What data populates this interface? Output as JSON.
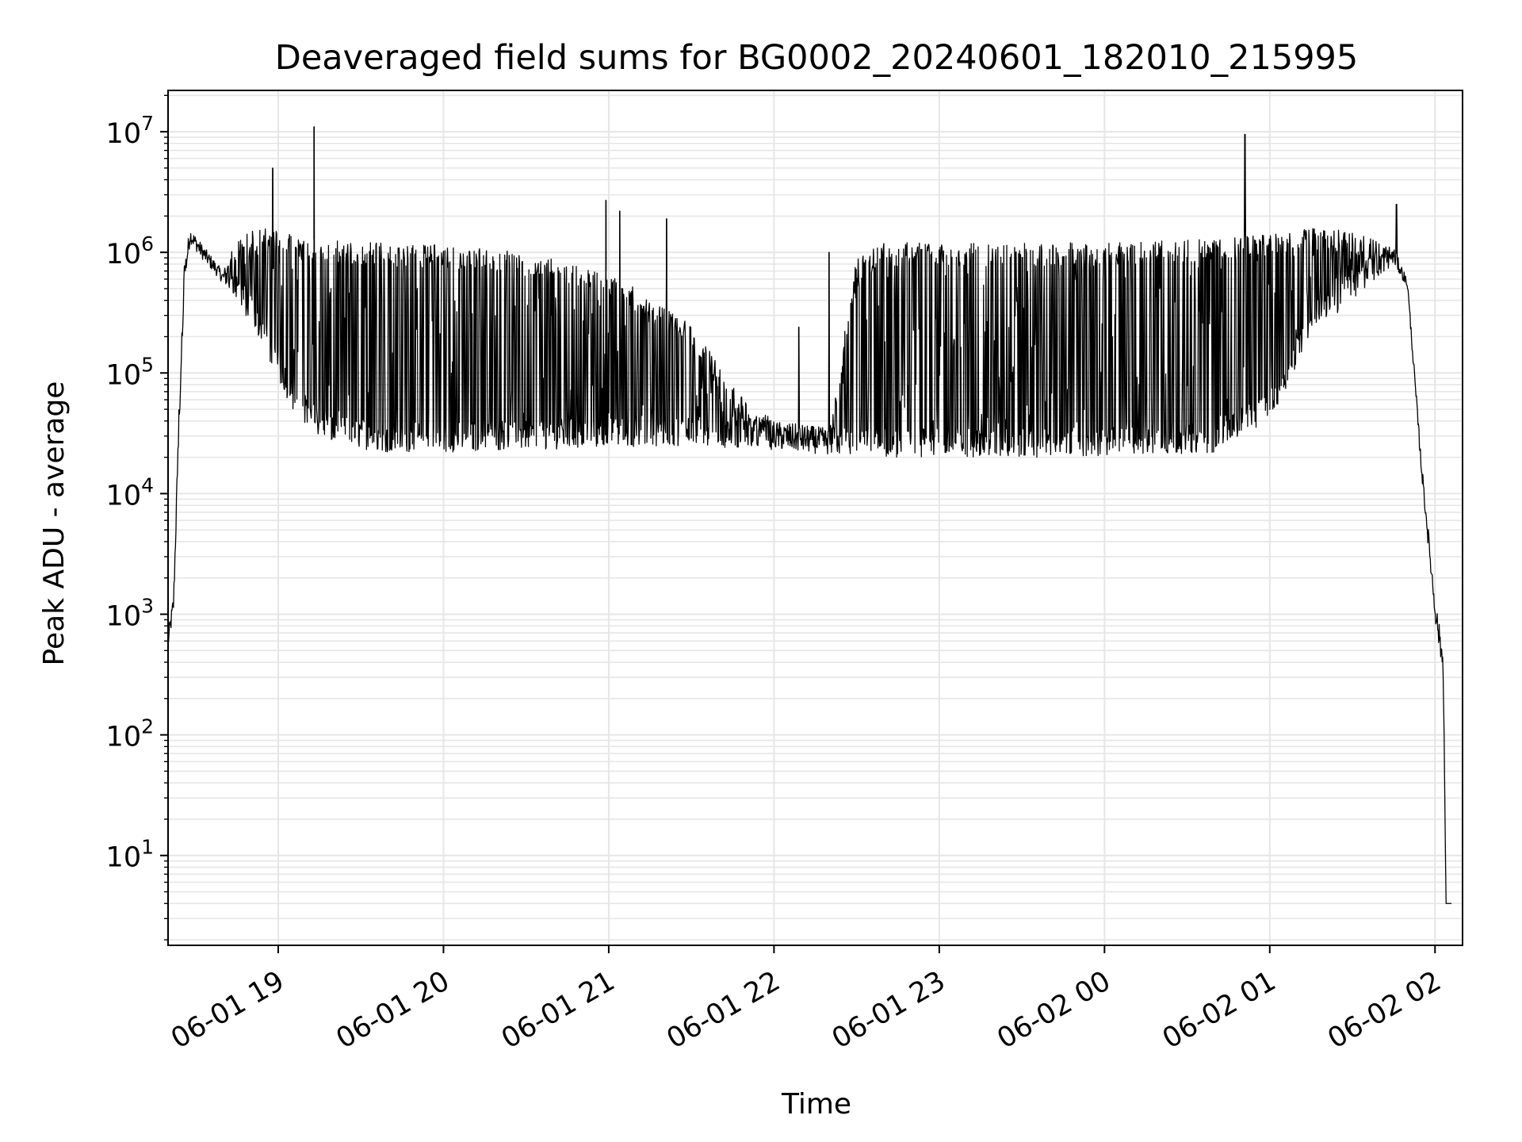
{
  "chart_data": {
    "type": "line",
    "title": "Deaveraged field sums for BG0002_20240601_182010_215995",
    "xlabel": "Time",
    "ylabel": "Peak ADU - average",
    "y_scale": "log",
    "ylim": [
      1.8,
      22000000
    ],
    "xlim": [
      "2024-06-01 18:20",
      "2024-06-02 02:10"
    ],
    "grid": true,
    "x_tick_labels": [
      "06-01 19",
      "06-01 20",
      "06-01 21",
      "06-01 22",
      "06-01 23",
      "06-02 00",
      "06-02 01",
      "06-02 02"
    ],
    "x_ticks": [
      "2024-06-01 19:00",
      "2024-06-01 20:00",
      "2024-06-01 21:00",
      "2024-06-01 22:00",
      "2024-06-01 23:00",
      "2024-06-02 00:00",
      "2024-06-02 01:00",
      "2024-06-02 02:00"
    ],
    "y_ticks": [
      10,
      100,
      1000,
      10000,
      100000,
      1000000,
      10000000
    ],
    "y_tick_labels": [
      {
        "base": "10",
        "exp": "1"
      },
      {
        "base": "10",
        "exp": "2"
      },
      {
        "base": "10",
        "exp": "3"
      },
      {
        "base": "10",
        "exp": "4"
      },
      {
        "base": "10",
        "exp": "5"
      },
      {
        "base": "10",
        "exp": "6"
      },
      {
        "base": "10",
        "exp": "7"
      }
    ],
    "series": [
      {
        "color": "#000000",
        "envelope": [
          {
            "t": "2024-06-01 18:20",
            "lower": 500,
            "upper": 700
          },
          {
            "t": "2024-06-01 18:22",
            "lower": 1000,
            "upper": 1500
          },
          {
            "t": "2024-06-01 18:24",
            "lower": 30000,
            "upper": 60000
          },
          {
            "t": "2024-06-01 18:26",
            "lower": 500000,
            "upper": 900000
          },
          {
            "t": "2024-06-01 18:28",
            "lower": 1200000,
            "upper": 1600000
          },
          {
            "t": "2024-06-01 18:32",
            "lower": 900000,
            "upper": 1200000
          },
          {
            "t": "2024-06-01 18:40",
            "lower": 550000,
            "upper": 700000
          },
          {
            "t": "2024-06-01 18:45",
            "lower": 400000,
            "upper": 1400000
          },
          {
            "t": "2024-06-01 18:50",
            "lower": 250000,
            "upper": 1500000
          },
          {
            "t": "2024-06-01 18:55",
            "lower": 150000,
            "upper": 1600000
          },
          {
            "t": "2024-06-01 19:00",
            "lower": 90000,
            "upper": 1500000
          },
          {
            "t": "2024-06-01 19:05",
            "lower": 50000,
            "upper": 1400000
          },
          {
            "t": "2024-06-01 19:10",
            "lower": 35000,
            "upper": 1300000
          },
          {
            "t": "2024-06-01 19:20",
            "lower": 25000,
            "upper": 1250000
          },
          {
            "t": "2024-06-01 19:40",
            "lower": 22000,
            "upper": 1200000
          },
          {
            "t": "2024-06-01 20:00",
            "lower": 22000,
            "upper": 1150000
          },
          {
            "t": "2024-06-01 20:30",
            "lower": 23000,
            "upper": 1000000
          },
          {
            "t": "2024-06-01 21:00",
            "lower": 24000,
            "upper": 700000
          },
          {
            "t": "2024-06-01 21:30",
            "lower": 25000,
            "upper": 250000
          },
          {
            "t": "2024-06-01 21:45",
            "lower": 24000,
            "upper": 80000
          },
          {
            "t": "2024-06-01 22:00",
            "lower": 23000,
            "upper": 40000
          },
          {
            "t": "2024-06-01 22:20",
            "lower": 21000,
            "upper": 35000
          },
          {
            "t": "2024-06-01 22:30",
            "lower": 20000,
            "upper": 900000
          },
          {
            "t": "2024-06-01 22:40",
            "lower": 20000,
            "upper": 1200000
          },
          {
            "t": "2024-06-01 23:00",
            "lower": 20000,
            "upper": 1200000
          },
          {
            "t": "2024-06-02 00:00",
            "lower": 20000,
            "upper": 1200000
          },
          {
            "t": "2024-06-02 00:40",
            "lower": 22000,
            "upper": 1300000
          },
          {
            "t": "2024-06-02 01:00",
            "lower": 40000,
            "upper": 1400000
          },
          {
            "t": "2024-06-02 01:15",
            "lower": 200000,
            "upper": 1600000
          },
          {
            "t": "2024-06-02 01:30",
            "lower": 400000,
            "upper": 1500000
          },
          {
            "t": "2024-06-02 01:45",
            "lower": 800000,
            "upper": 1100000
          },
          {
            "t": "2024-06-02 01:50",
            "lower": 500000,
            "upper": 600000
          },
          {
            "t": "2024-06-02 01:55",
            "lower": 15000,
            "upper": 20000
          },
          {
            "t": "2024-06-02 02:00",
            "lower": 900,
            "upper": 1400
          },
          {
            "t": "2024-06-02 02:03",
            "lower": 300,
            "upper": 500
          },
          {
            "t": "2024-06-02 02:04",
            "lower": 4,
            "upper": 4
          },
          {
            "t": "2024-06-02 02:06",
            "lower": 4,
            "upper": 4
          }
        ],
        "spikes": [
          {
            "t": "2024-06-01 18:58",
            "value": 5000000
          },
          {
            "t": "2024-06-01 19:13",
            "value": 11000000
          },
          {
            "t": "2024-06-01 20:59",
            "value": 2700000
          },
          {
            "t": "2024-06-01 21:04",
            "value": 2200000
          },
          {
            "t": "2024-06-01 21:21",
            "value": 1900000
          },
          {
            "t": "2024-06-01 22:09",
            "value": 240000
          },
          {
            "t": "2024-06-01 22:20",
            "value": 1000000
          },
          {
            "t": "2024-06-02 00:51",
            "value": 9500000
          },
          {
            "t": "2024-06-02 01:46",
            "value": 2500000
          }
        ]
      }
    ]
  }
}
